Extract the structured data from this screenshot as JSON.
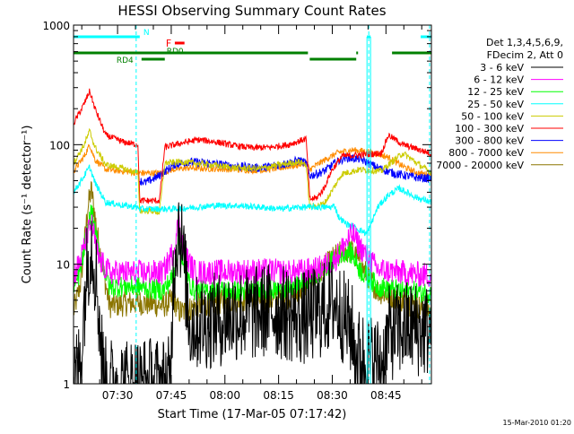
{
  "chart_data": {
    "type": "line",
    "title": "HESSI Observing Summary Count Rates",
    "xlabel": "Start Time (17-Mar-05 07:17:42)",
    "ylabel": "Count Rate (s⁻¹ detector⁻¹)",
    "y_scale": "log",
    "ylim": [
      1,
      1000
    ],
    "xlim_minutes_after_start": [
      0,
      100
    ],
    "x_tick_labels": [
      "07:30",
      "07:45",
      "08:00",
      "08:15",
      "08:30",
      "08:45"
    ],
    "x_ticks_minutes_after_start": [
      12.3,
      27.3,
      42.3,
      57.3,
      72.3,
      87.3
    ],
    "y_tick_labels": [
      "1",
      "10",
      "100",
      "1000"
    ],
    "y_ticks": [
      1,
      10,
      100,
      1000
    ],
    "legend_header": [
      "Det 1,3,4,5,6,9,",
      "FDecim 2, Att 0"
    ],
    "legend_position": "right",
    "series": [
      {
        "name": "3 - 6 keV",
        "color": "#000000",
        "noise": 0.45,
        "points": [
          [
            0,
            1.0
          ],
          [
            2,
            1.5
          ],
          [
            3.5,
            8
          ],
          [
            5,
            16
          ],
          [
            6.5,
            7
          ],
          [
            8,
            1.6
          ],
          [
            9,
            1.0
          ],
          [
            27,
            1.0
          ],
          [
            28,
            10
          ],
          [
            29.5,
            23
          ],
          [
            31,
            9
          ],
          [
            32.5,
            3
          ],
          [
            34,
            3.2
          ],
          [
            40,
            3.4
          ],
          [
            45,
            3.8
          ],
          [
            50,
            3.8
          ],
          [
            55,
            4.2
          ],
          [
            60,
            3.8
          ],
          [
            65,
            3.5
          ],
          [
            70,
            4.2
          ],
          [
            73,
            4.8
          ],
          [
            78,
            2.7
          ],
          [
            78.5,
            1.8
          ],
          [
            84,
            1.5
          ],
          [
            86.5,
            1.5
          ],
          [
            88,
            2.6
          ],
          [
            94,
            3.0
          ],
          [
            97,
            2.8
          ],
          [
            100,
            2.8
          ]
        ]
      },
      {
        "name": "6 - 12 keV",
        "color": "#ff00ff",
        "noise": 0.12,
        "points": [
          [
            0,
            8
          ],
          [
            2,
            11
          ],
          [
            4,
            18
          ],
          [
            5,
            22
          ],
          [
            7,
            11
          ],
          [
            10,
            8.5
          ],
          [
            18,
            8.5
          ],
          [
            25,
            8.5
          ],
          [
            28,
            13
          ],
          [
            29.5,
            24
          ],
          [
            31,
            12
          ],
          [
            34,
            8.5
          ],
          [
            45,
            8.7
          ],
          [
            55,
            8.8
          ],
          [
            60,
            8.5
          ],
          [
            68,
            9
          ],
          [
            73,
            11
          ],
          [
            76,
            15
          ],
          [
            78,
            18
          ],
          [
            80,
            14
          ],
          [
            85,
            9
          ],
          [
            92,
            8.5
          ],
          [
            100,
            8
          ]
        ]
      },
      {
        "name": "12 - 25 keV",
        "color": "#00ff00",
        "noise": 0.1,
        "points": [
          [
            0,
            6
          ],
          [
            2,
            9
          ],
          [
            4,
            20
          ],
          [
            5,
            28
          ],
          [
            7,
            13
          ],
          [
            10,
            6.5
          ],
          [
            18,
            6.5
          ],
          [
            25,
            6
          ],
          [
            28,
            8
          ],
          [
            29.5,
            16
          ],
          [
            31,
            8
          ],
          [
            34,
            6
          ],
          [
            45,
            6
          ],
          [
            55,
            6
          ],
          [
            60,
            6.2
          ],
          [
            68,
            8
          ],
          [
            73,
            11
          ],
          [
            76,
            13
          ],
          [
            78,
            12
          ],
          [
            80,
            9
          ],
          [
            85,
            6.5
          ],
          [
            92,
            6
          ],
          [
            100,
            5.8
          ]
        ]
      },
      {
        "name": "25 - 50 keV",
        "color": "#00ffff",
        "noise": 0.03,
        "points": [
          [
            0,
            40
          ],
          [
            3,
            55
          ],
          [
            4.5,
            65
          ],
          [
            6,
            48
          ],
          [
            9,
            33
          ],
          [
            14,
            31
          ],
          [
            18,
            30
          ],
          [
            18.5,
            29
          ],
          [
            24,
            29
          ],
          [
            28,
            29
          ],
          [
            34,
            30
          ],
          [
            40,
            31
          ],
          [
            45,
            31
          ],
          [
            52,
            30
          ],
          [
            58,
            29
          ],
          [
            63,
            30
          ],
          [
            65,
            30
          ],
          [
            72,
            30
          ],
          [
            73,
            31
          ],
          [
            74,
            25
          ],
          [
            76,
            22
          ],
          [
            79,
            20
          ],
          [
            82,
            18
          ],
          [
            85,
            30
          ],
          [
            88,
            38
          ],
          [
            91,
            43
          ],
          [
            96,
            36
          ],
          [
            100,
            33
          ]
        ]
      },
      {
        "name": "50 - 100 keV",
        "color": "#cccc00",
        "noise": 0.03,
        "points": [
          [
            0,
            70
          ],
          [
            3,
            100
          ],
          [
            4.5,
            130
          ],
          [
            6,
            95
          ],
          [
            9,
            68
          ],
          [
            14,
            63
          ],
          [
            18,
            58
          ],
          [
            18.5,
            28
          ],
          [
            22,
            28
          ],
          [
            24,
            27
          ],
          [
            25.5,
            70
          ],
          [
            30,
            72
          ],
          [
            38,
            68
          ],
          [
            45,
            64
          ],
          [
            52,
            63
          ],
          [
            58,
            68
          ],
          [
            63,
            72
          ],
          [
            65,
            68
          ],
          [
            66,
            30
          ],
          [
            68,
            31
          ],
          [
            70,
            32
          ],
          [
            72,
            40
          ],
          [
            75,
            57
          ],
          [
            80,
            62
          ],
          [
            86,
            60
          ],
          [
            88,
            68
          ],
          [
            92,
            85
          ],
          [
            96,
            70
          ],
          [
            100,
            58
          ]
        ]
      },
      {
        "name": "100 - 300 keV",
        "color": "#ff0000",
        "noise": 0.03,
        "points": [
          [
            0,
            150
          ],
          [
            3,
            220
          ],
          [
            4.5,
            280
          ],
          [
            6,
            200
          ],
          [
            9,
            120
          ],
          [
            14,
            105
          ],
          [
            18,
            100
          ],
          [
            18.5,
            34
          ],
          [
            24,
            34
          ],
          [
            25.5,
            95
          ],
          [
            30,
            103
          ],
          [
            35,
            110
          ],
          [
            40,
            105
          ],
          [
            45,
            98
          ],
          [
            50,
            94
          ],
          [
            55,
            95
          ],
          [
            60,
            100
          ],
          [
            65,
            112
          ],
          [
            66,
            35
          ],
          [
            68,
            36
          ],
          [
            70,
            43
          ],
          [
            72,
            60
          ],
          [
            75,
            80
          ],
          [
            80,
            82
          ],
          [
            86,
            85
          ],
          [
            88,
            120
          ],
          [
            92,
            100
          ],
          [
            96,
            92
          ],
          [
            100,
            84
          ]
        ]
      },
      {
        "name": "300 - 800 keV",
        "color": "#0000ff",
        "noise": 0.04,
        "points": [
          [
            18.5,
            50
          ],
          [
            20,
            48
          ],
          [
            24,
            55
          ],
          [
            28,
            68
          ],
          [
            32,
            72
          ],
          [
            38,
            70
          ],
          [
            45,
            66
          ],
          [
            52,
            64
          ],
          [
            58,
            68
          ],
          [
            63,
            74
          ],
          [
            65,
            70
          ],
          [
            66,
            55
          ],
          [
            68,
            57
          ],
          [
            70,
            60
          ],
          [
            73,
            70
          ],
          [
            76,
            78
          ],
          [
            80,
            76
          ],
          [
            85,
            64
          ],
          [
            90,
            57
          ],
          [
            96,
            53
          ],
          [
            100,
            52
          ]
        ]
      },
      {
        "name": "800 - 7000 keV",
        "color": "#ff8c00",
        "noise": 0.03,
        "points": [
          [
            0,
            60
          ],
          [
            3,
            80
          ],
          [
            4.5,
            100
          ],
          [
            6,
            75
          ],
          [
            9,
            62
          ],
          [
            14,
            60
          ],
          [
            18,
            58
          ],
          [
            24,
            58
          ],
          [
            28,
            62
          ],
          [
            32,
            64
          ],
          [
            38,
            63
          ],
          [
            45,
            62
          ],
          [
            52,
            61
          ],
          [
            58,
            64
          ],
          [
            63,
            68
          ],
          [
            65,
            70
          ],
          [
            66,
            62
          ],
          [
            70,
            74
          ],
          [
            74,
            86
          ],
          [
            78,
            90
          ],
          [
            82,
            88
          ],
          [
            86,
            82
          ],
          [
            88,
            78
          ],
          [
            92,
            66
          ],
          [
            96,
            58
          ],
          [
            100,
            56
          ]
        ]
      },
      {
        "name": "7000 - 20000 keV",
        "color": "#8b7500",
        "noise": 0.12,
        "points": [
          [
            0,
            4
          ],
          [
            2,
            7
          ],
          [
            4,
            30
          ],
          [
            5,
            42
          ],
          [
            7,
            15
          ],
          [
            10,
            4.5
          ],
          [
            18,
            4.8
          ],
          [
            25,
            4.5
          ],
          [
            28,
            5
          ],
          [
            29.5,
            4
          ],
          [
            31,
            4
          ],
          [
            34,
            4.5
          ],
          [
            45,
            5
          ],
          [
            55,
            5
          ],
          [
            62,
            5.5
          ],
          [
            68,
            8
          ],
          [
            73,
            11.5
          ],
          [
            76,
            13
          ],
          [
            78,
            13
          ],
          [
            80,
            10
          ],
          [
            85,
            6
          ],
          [
            92,
            5
          ],
          [
            100,
            4
          ]
        ]
      }
    ],
    "attenuator_flags": [
      {
        "label": "N",
        "color": "#00ffff",
        "segments": [
          [
            0,
            18.5
          ],
          [
            82,
            83
          ],
          [
            97,
            100
          ]
        ],
        "level": 1
      }
    ],
    "flare_flag": {
      "label": "F",
      "color": "#ff0000",
      "segments": [
        [
          28.3,
          31
        ]
      ]
    },
    "rd_flags": [
      {
        "label": "RD0",
        "color": "#008000",
        "segments": [
          [
            0,
            65.5
          ],
          [
            79,
            79.5
          ],
          [
            89,
            100
          ]
        ]
      },
      {
        "label": "RD4",
        "color": "#008000",
        "segments": [
          [
            19,
            25.5
          ],
          [
            66,
            79
          ]
        ]
      }
    ],
    "saa_dashed_lines_minutes": [
      17.5,
      82.5,
      99.5
    ],
    "timestamp": "15-Mar-2010 01:20"
  }
}
